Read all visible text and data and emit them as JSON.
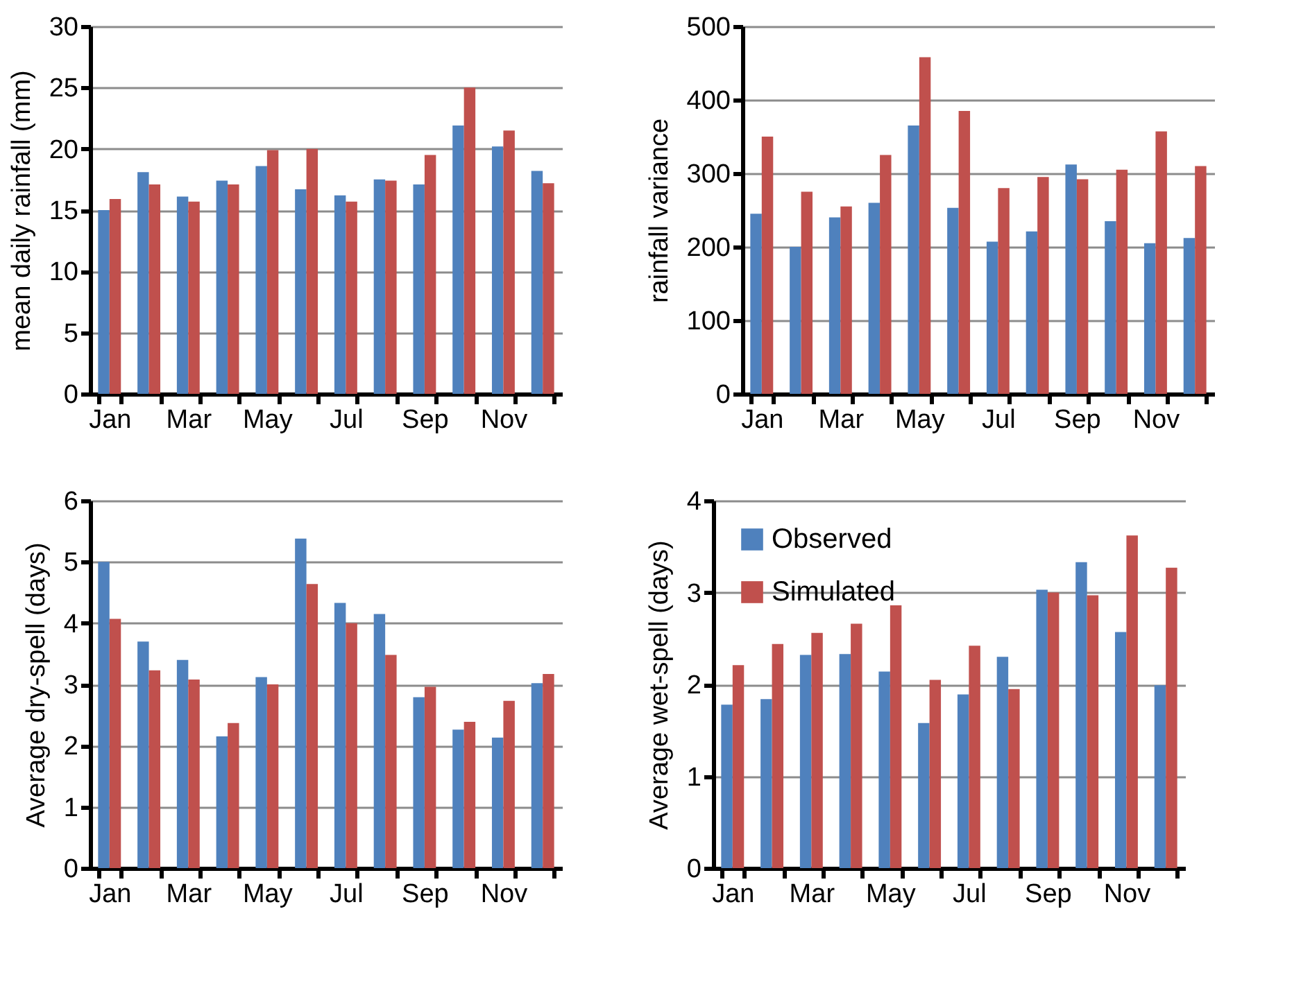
{
  "chart_data": [
    {
      "type": "bar",
      "ylabel": "mean daily rainfall (mm)",
      "categories": [
        "Jan",
        null,
        "Mar",
        null,
        "May",
        null,
        "Jul",
        null,
        "Sep",
        null,
        "Nov",
        null
      ],
      "ylim": [
        0,
        30
      ],
      "yticks": [
        0,
        5,
        10,
        15,
        20,
        25,
        30
      ],
      "grid": "y",
      "series": [
        {
          "color": "#4f81bd",
          "values": [
            15.0,
            18.1,
            16.1,
            17.4,
            18.6,
            16.7,
            16.2,
            17.5,
            17.1,
            21.9,
            20.2,
            18.2
          ]
        },
        {
          "color": "#c0504d",
          "values": [
            15.9,
            17.1,
            15.7,
            17.1,
            19.9,
            20.0,
            15.7,
            17.4,
            19.5,
            25.0,
            21.5,
            17.2
          ]
        }
      ]
    },
    {
      "type": "bar",
      "ylabel": "rainfall variance",
      "categories": [
        "Jan",
        null,
        "Mar",
        null,
        "May",
        null,
        "Jul",
        null,
        "Sep",
        null,
        "Nov",
        null
      ],
      "ylim": [
        0,
        500
      ],
      "yticks": [
        0,
        100,
        200,
        300,
        400,
        500
      ],
      "grid": "y",
      "series": [
        {
          "color": "#4f81bd",
          "values": [
            245,
            200,
            240,
            260,
            365,
            253,
            207,
            221,
            312,
            235,
            205,
            212
          ]
        },
        {
          "color": "#c0504d",
          "values": [
            350,
            275,
            255,
            325,
            458,
            385,
            280,
            295,
            292,
            305,
            357,
            310
          ]
        }
      ]
    },
    {
      "type": "bar",
      "ylabel": "Average dry-spell (days)",
      "categories": [
        "Jan",
        null,
        "Mar",
        null,
        "May",
        null,
        "Jul",
        null,
        "Sep",
        null,
        "Nov",
        null
      ],
      "ylim": [
        0,
        6
      ],
      "yticks": [
        0,
        1,
        2,
        3,
        4,
        5,
        6
      ],
      "grid": "y",
      "series": [
        {
          "color": "#4f81bd",
          "values": [
            5.0,
            3.7,
            3.4,
            2.15,
            3.12,
            5.38,
            4.33,
            4.15,
            2.79,
            2.26,
            2.13,
            3.02
          ]
        },
        {
          "color": "#c0504d",
          "values": [
            4.07,
            3.23,
            3.08,
            2.37,
            3.0,
            4.64,
            4.0,
            3.48,
            2.96,
            2.39,
            2.73,
            3.17
          ]
        }
      ]
    },
    {
      "type": "bar",
      "ylabel": "Average wet-spell (days)",
      "categories": [
        "Jan",
        null,
        "Mar",
        null,
        "May",
        null,
        "Jul",
        null,
        "Sep",
        null,
        "Nov",
        null
      ],
      "ylim": [
        0,
        4
      ],
      "yticks": [
        0,
        1,
        2,
        3,
        4
      ],
      "grid": "y",
      "legend": "top left",
      "series": [
        {
          "name": "Observed",
          "color": "#4f81bd",
          "values": [
            1.78,
            1.84,
            2.32,
            2.33,
            2.14,
            1.58,
            1.89,
            2.3,
            3.03,
            3.33,
            2.57,
            1.99
          ]
        },
        {
          "name": "Simulated",
          "color": "#c0504d",
          "values": [
            2.21,
            2.44,
            2.56,
            2.66,
            2.86,
            2.05,
            2.42,
            1.95,
            3.0,
            2.97,
            3.62,
            3.27
          ]
        }
      ]
    }
  ]
}
